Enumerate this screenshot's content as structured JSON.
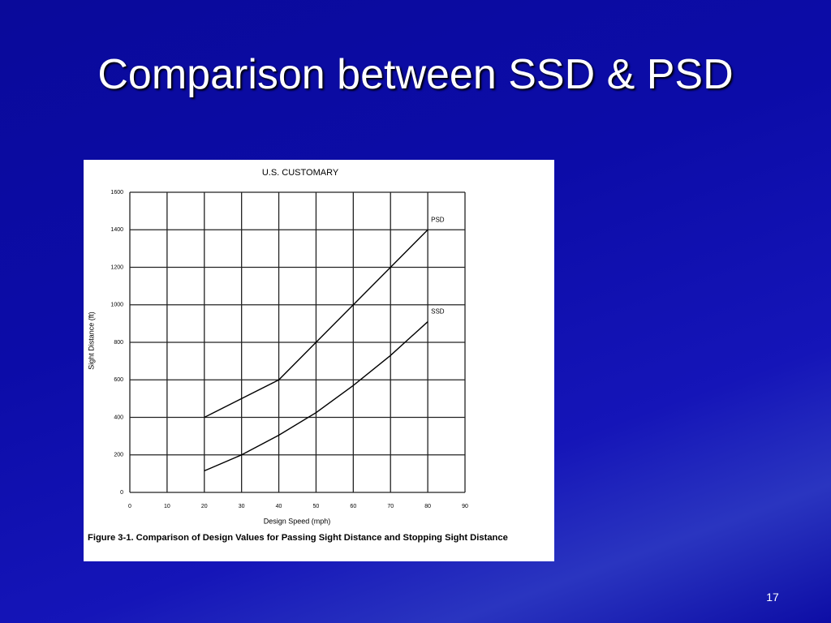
{
  "slide": {
    "title": "Comparison between SSD & PSD",
    "page_number": 17
  },
  "chart_data": {
    "type": "line",
    "title": "U.S. CUSTOMARY",
    "x_label": "Design Speed (mph)",
    "y_label": "Sight Distance (ft)",
    "caption": "Figure 3-1. Comparison of Design Values for Passing Sight Distance and Stopping Sight Distance",
    "x": [
      20,
      30,
      40,
      50,
      60,
      70,
      80
    ],
    "series": [
      {
        "name": "PSD",
        "color": "#000000",
        "values": [
          400,
          500,
          600,
          800,
          1000,
          1200,
          1400
        ]
      },
      {
        "name": "SSD",
        "color": "#000000",
        "values": [
          115,
          200,
          305,
          425,
          570,
          730,
          910
        ]
      }
    ],
    "xlim": [
      0,
      90
    ],
    "xticks": [
      0,
      10,
      20,
      30,
      40,
      50,
      60,
      70,
      80,
      90
    ],
    "ylim": [
      0,
      1600
    ],
    "yticks": [
      0,
      200,
      400,
      600,
      800,
      1000,
      1200,
      1400,
      1600
    ],
    "grid": true
  }
}
